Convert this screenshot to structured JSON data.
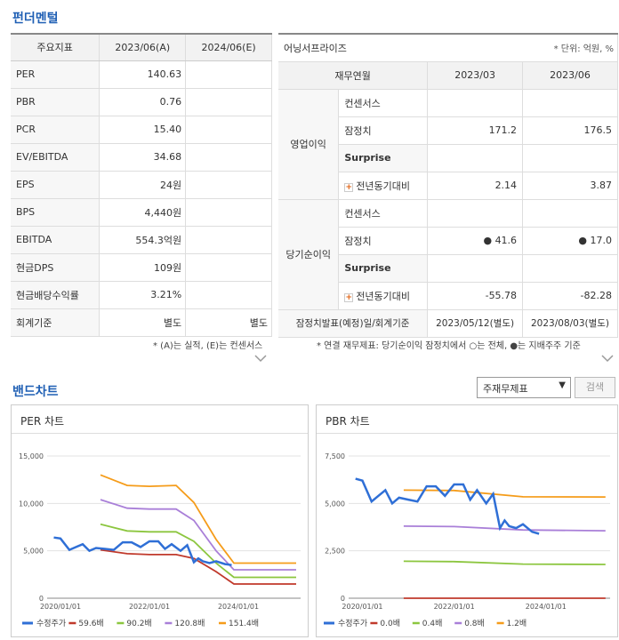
{
  "fundamental": {
    "title": "펀더멘털",
    "headers": [
      "주요지표",
      "2023/06(A)",
      "2024/06(E)"
    ],
    "rows": [
      [
        "PER",
        "140.63",
        ""
      ],
      [
        "PBR",
        "0.76",
        ""
      ],
      [
        "PCR",
        "15.40",
        ""
      ],
      [
        "EV/EBITDA",
        "34.68",
        ""
      ],
      [
        "EPS",
        "24원",
        ""
      ],
      [
        "BPS",
        "4,440원",
        ""
      ],
      [
        "EBITDA",
        "554.3억원",
        ""
      ],
      [
        "현금DPS",
        "109원",
        ""
      ],
      [
        "현금배당수익률",
        "3.21%",
        ""
      ],
      [
        "회계기준",
        "별도",
        "별도"
      ]
    ],
    "note": "* (A)는 실적, (E)는 컨센서스"
  },
  "earnings": {
    "title": "어닝서프라이즈",
    "unit": "* 단위: 억원, %",
    "col_label": "재무연월",
    "cols": [
      "2023/03",
      "2023/06"
    ],
    "groups": [
      {
        "name": "영업이익",
        "rows": [
          {
            "label": "컨센서스",
            "v1": "",
            "v2": ""
          },
          {
            "label": "잠정치",
            "v1": "171.2",
            "v2": "176.5"
          },
          {
            "label": "Surprise",
            "v1": "",
            "v2": ""
          },
          {
            "label": "전년동기대비",
            "v1": "2.14",
            "v2": "3.87"
          }
        ]
      },
      {
        "name": "당기순이익",
        "rows": [
          {
            "label": "컨센서스",
            "v1": "",
            "v2": ""
          },
          {
            "label": "잠정치",
            "v1": "● 41.6",
            "v2": "● 17.0"
          },
          {
            "label": "Surprise",
            "v1": "",
            "v2": ""
          },
          {
            "label": "전년동기대비",
            "v1": "-55.78",
            "v2": "-82.28"
          }
        ]
      }
    ],
    "footer": {
      "label": "잠정치발표(예정)일/회계기준",
      "v1": "2023/05/12(별도)",
      "v2": "2023/08/03(별도)"
    },
    "note": "* 연결 재무제표: 당기순이익 잠정치에서 ○는 전체, ●는 지배주주 기준"
  },
  "band": {
    "title": "밴드차트",
    "select_value": "주재무제표",
    "search_label": "검색"
  },
  "chart_data": [
    {
      "type": "line",
      "title": "PER 차트",
      "x_ticks": [
        "2020/01/01",
        "2022/01/01",
        "2024/01/01"
      ],
      "y_ticks": [
        "0",
        "5,000",
        "10,000",
        "15,000"
      ],
      "ylim": [
        0,
        15000
      ],
      "xlim": [
        2019.7,
        2025.4
      ],
      "series": [
        {
          "name": "수정주가",
          "color": "#2f6fd6",
          "x": [
            2019.85,
            2020.0,
            2020.2,
            2020.35,
            2020.5,
            2020.65,
            2020.8,
            2021.0,
            2021.2,
            2021.4,
            2021.6,
            2021.8,
            2022.0,
            2022.2,
            2022.35,
            2022.5,
            2022.7,
            2022.85,
            2023.0,
            2023.1,
            2023.2,
            2023.35,
            2023.5,
            2023.7,
            2023.85
          ],
          "values": [
            6400,
            6300,
            5100,
            5400,
            5700,
            5000,
            5300,
            5200,
            5100,
            5900,
            5900,
            5400,
            6000,
            6000,
            5200,
            5700,
            5000,
            5600,
            3800,
            4200,
            3900,
            3700,
            3900,
            3600,
            3500
          ]
        },
        {
          "name": "59.6배",
          "color": "#c0392b",
          "x": [
            2020.9,
            2021.5,
            2022.0,
            2022.6,
            2023.0,
            2023.5,
            2023.9,
            2025.3
          ],
          "values": [
            5100,
            4700,
            4600,
            4600,
            4200,
            2800,
            1500,
            1500
          ]
        },
        {
          "name": "90.2배",
          "color": "#8cc63f",
          "x": [
            2020.9,
            2021.5,
            2022.0,
            2022.6,
            2023.0,
            2023.5,
            2023.9,
            2025.3
          ],
          "values": [
            7800,
            7100,
            7000,
            7000,
            6000,
            3700,
            2200,
            2200
          ]
        },
        {
          "name": "120.8배",
          "color": "#a97fd8",
          "x": [
            2020.9,
            2021.5,
            2022.0,
            2022.6,
            2023.0,
            2023.5,
            2023.9,
            2025.3
          ],
          "values": [
            10400,
            9500,
            9400,
            9400,
            8200,
            5000,
            3000,
            3000
          ]
        },
        {
          "name": "151.4배",
          "color": "#f59c1a",
          "x": [
            2020.9,
            2021.5,
            2022.0,
            2022.6,
            2023.0,
            2023.5,
            2023.9,
            2025.3
          ],
          "values": [
            13000,
            11900,
            11800,
            11900,
            10100,
            6200,
            3700,
            3700
          ]
        }
      ]
    },
    {
      "type": "line",
      "title": "PBR 차트",
      "x_ticks": [
        "2020/01/01",
        "2022/01/01",
        "2024/01/01"
      ],
      "y_ticks": [
        "0",
        "2,500",
        "5,000",
        "7,500"
      ],
      "ylim": [
        0,
        7500
      ],
      "xlim": [
        2019.7,
        2025.4
      ],
      "series": [
        {
          "name": "수정주가",
          "color": "#2f6fd6",
          "x": [
            2019.85,
            2020.0,
            2020.2,
            2020.35,
            2020.5,
            2020.65,
            2020.8,
            2021.0,
            2021.2,
            2021.4,
            2021.6,
            2021.8,
            2022.0,
            2022.2,
            2022.35,
            2022.5,
            2022.7,
            2022.85,
            2023.0,
            2023.1,
            2023.2,
            2023.35,
            2023.5,
            2023.7,
            2023.85
          ],
          "values": [
            6300,
            6200,
            5100,
            5400,
            5700,
            5000,
            5300,
            5200,
            5100,
            5900,
            5900,
            5400,
            6000,
            6000,
            5200,
            5700,
            5000,
            5500,
            3700,
            4100,
            3800,
            3700,
            3900,
            3500,
            3400
          ]
        },
        {
          "name": "0.0배",
          "color": "#c0392b",
          "x": [
            2020.9,
            2025.3
          ],
          "values": [
            0,
            0
          ]
        },
        {
          "name": "0.4배",
          "color": "#8cc63f",
          "x": [
            2020.9,
            2022.0,
            2023.5,
            2025.3
          ],
          "values": [
            1950,
            1930,
            1800,
            1780
          ]
        },
        {
          "name": "0.8배",
          "color": "#a97fd8",
          "x": [
            2020.9,
            2022.0,
            2023.5,
            2025.3
          ],
          "values": [
            3800,
            3780,
            3600,
            3560
          ]
        },
        {
          "name": "1.2배",
          "color": "#f59c1a",
          "x": [
            2020.9,
            2022.0,
            2023.5,
            2025.3
          ],
          "values": [
            5700,
            5680,
            5350,
            5340
          ]
        }
      ]
    }
  ]
}
